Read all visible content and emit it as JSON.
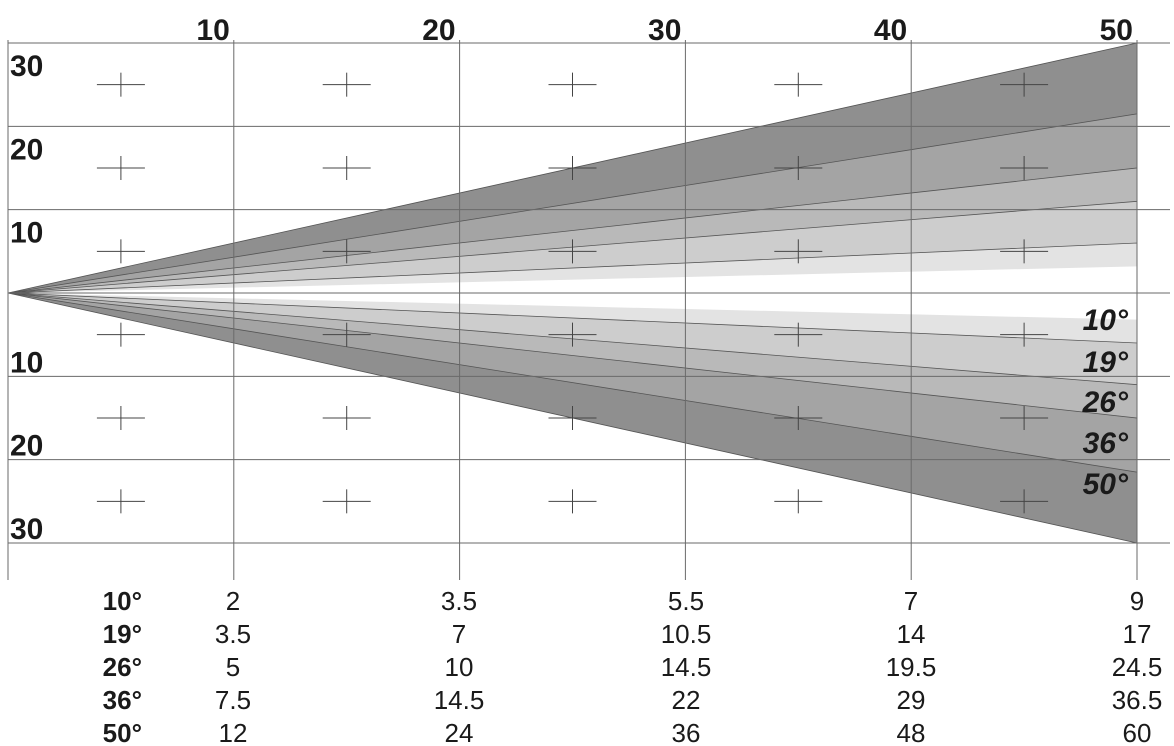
{
  "colors": {
    "band_50": "#8f8f8f",
    "band_36": "#a4a4a4",
    "band_26": "#b9b9b9",
    "band_19": "#cdcdcd",
    "band_10": "#e3e3e3",
    "grid": "#6a6a6a",
    "text": "#1a1a1a"
  },
  "chart_data": {
    "type": "beam-angle diagram",
    "x_ticks": [
      "10",
      "20",
      "30",
      "40",
      "50"
    ],
    "x_range": [
      0,
      50
    ],
    "y_ticks_upper": [
      "30",
      "20",
      "10"
    ],
    "y_ticks_lower": [
      "10",
      "20",
      "30"
    ],
    "y_range": [
      -30,
      30
    ],
    "beams": [
      {
        "angle": 50,
        "label": "50°",
        "half_width_at_50": 30
      },
      {
        "angle": 36,
        "label": "36°",
        "half_width_at_50": 21.5
      },
      {
        "angle": 26,
        "label": "26°",
        "half_width_at_50": 15
      },
      {
        "angle": 19,
        "label": "19°",
        "half_width_at_50": 11
      },
      {
        "angle": 10,
        "label": "10°",
        "half_width_at_50": 6
      }
    ],
    "table": {
      "rows": [
        {
          "label": "10°",
          "values": [
            "2",
            "3.5",
            "5.5",
            "7",
            "9"
          ]
        },
        {
          "label": "19°",
          "values": [
            "3.5",
            "7",
            "10.5",
            "14",
            "17"
          ]
        },
        {
          "label": "26°",
          "values": [
            "5",
            "10",
            "14.5",
            "19.5",
            "24.5"
          ]
        },
        {
          "label": "36°",
          "values": [
            "7.5",
            "14.5",
            "22",
            "29",
            "36.5"
          ]
        },
        {
          "label": "50°",
          "values": [
            "12",
            "24",
            "36",
            "48",
            "60"
          ]
        }
      ]
    }
  }
}
